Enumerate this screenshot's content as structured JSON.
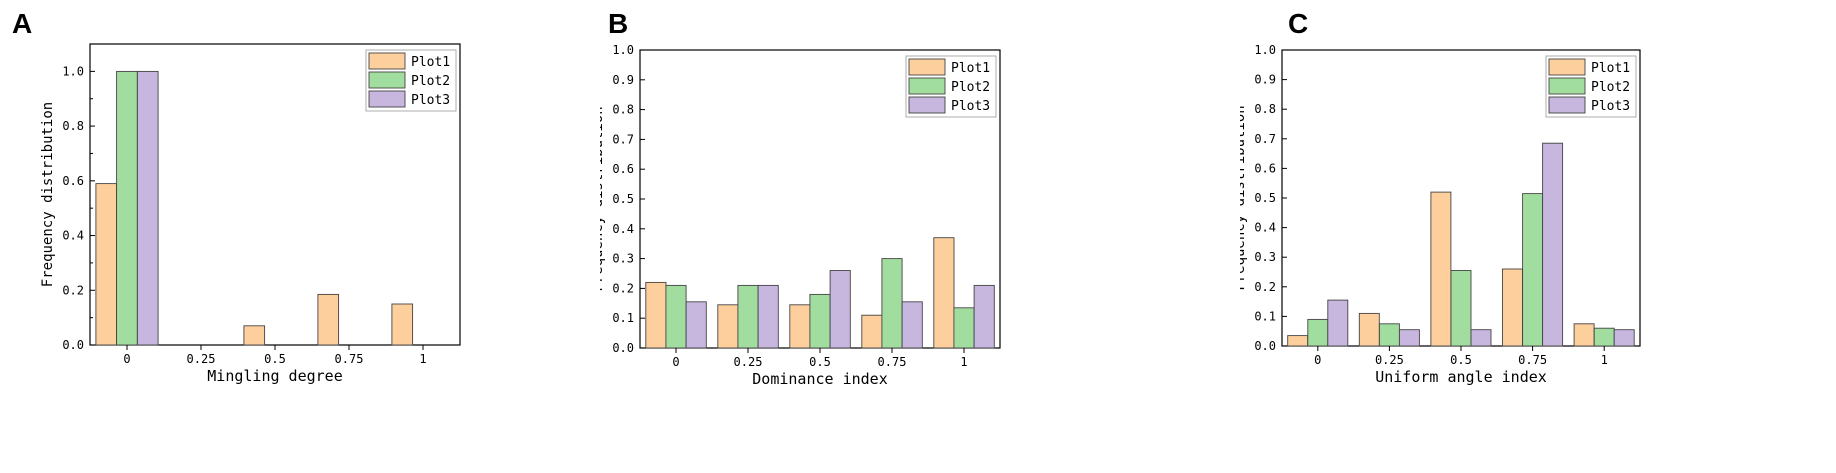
{
  "colors": {
    "Plot1": "#fdcf9c",
    "Plot2": "#a2dda0",
    "Plot3": "#c7b6de",
    "stroke": "#444444"
  },
  "panels": [
    {
      "letter": "A"
    },
    {
      "letter": "B"
    },
    {
      "letter": "C"
    }
  ],
  "chart_data": [
    {
      "type": "bar",
      "panel": "A",
      "categories": [
        "0",
        "0.25",
        "0.5",
        "0.75",
        "1"
      ],
      "series": [
        {
          "name": "Plot1",
          "values": [
            0.59,
            0,
            0.07,
            0.185,
            0.15
          ]
        },
        {
          "name": "Plot2",
          "values": [
            1.0,
            0,
            0,
            0,
            0
          ]
        },
        {
          "name": "Plot3",
          "values": [
            1.0,
            0,
            0,
            0,
            0
          ]
        }
      ],
      "title": "",
      "xlabel": "Mingling degree",
      "ylabel": "Frequency distribution",
      "ylim": [
        0,
        1.1
      ],
      "yticks": [
        "0.0",
        "0.2",
        "0.4",
        "0.6",
        "0.8",
        "1.0"
      ],
      "legend": "top-right",
      "grid": false
    },
    {
      "type": "bar",
      "panel": "B",
      "categories": [
        "0",
        "0.25",
        "0.5",
        "0.75",
        "1"
      ],
      "series": [
        {
          "name": "Plot1",
          "values": [
            0.22,
            0.145,
            0.145,
            0.11,
            0.37
          ]
        },
        {
          "name": "Plot2",
          "values": [
            0.21,
            0.21,
            0.18,
            0.3,
            0.135
          ]
        },
        {
          "name": "Plot3",
          "values": [
            0.155,
            0.21,
            0.26,
            0.155,
            0.21
          ]
        }
      ],
      "title": "",
      "xlabel": "Dominance index",
      "ylabel": "Frequency distribution",
      "ylim": [
        0,
        1.0
      ],
      "yticks": [
        "0.0",
        "0.1",
        "0.2",
        "0.3",
        "0.4",
        "0.5",
        "0.6",
        "0.7",
        "0.8",
        "0.9",
        "1.0"
      ],
      "legend": "top-right",
      "grid": false
    },
    {
      "type": "bar",
      "panel": "C",
      "categories": [
        "0",
        "0.25",
        "0.5",
        "0.75",
        "1"
      ],
      "series": [
        {
          "name": "Plot1",
          "values": [
            0.035,
            0.11,
            0.52,
            0.26,
            0.075
          ]
        },
        {
          "name": "Plot2",
          "values": [
            0.09,
            0.075,
            0.255,
            0.515,
            0.06
          ]
        },
        {
          "name": "Plot3",
          "values": [
            0.155,
            0.055,
            0.055,
            0.685,
            0.055
          ]
        }
      ],
      "title": "",
      "xlabel": "Uniform angle index",
      "ylabel": "Frequency distribution",
      "ylim": [
        0,
        1.0
      ],
      "yticks": [
        "0.0",
        "0.1",
        "0.2",
        "0.3",
        "0.4",
        "0.5",
        "0.6",
        "0.7",
        "0.8",
        "0.9",
        "1.0"
      ],
      "legend": "top-right",
      "grid": false
    }
  ]
}
